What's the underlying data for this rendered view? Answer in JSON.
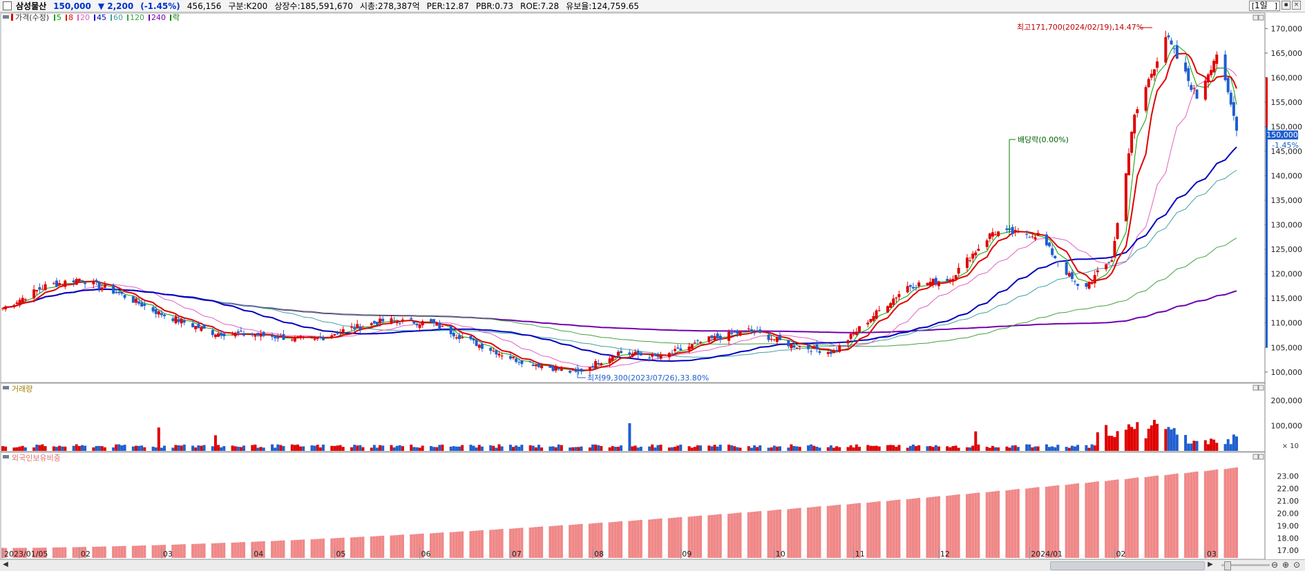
{
  "header": {
    "name": "삼성물산",
    "price": "150,000",
    "change": "▼ 2,200",
    "change_pct": "(-1.45%)",
    "volume": "456,156",
    "market": "구분:K200",
    "shares": "상장수:185,591,670",
    "mcap": "시총:278,387억",
    "per": "PER:12.87",
    "pbr": "PBR:0.73",
    "roe": "ROE:7.28",
    "float": "유보율:124,759.65",
    "period": "1일"
  },
  "legend": {
    "price_label": "가격(수정)",
    "ma": [
      {
        "label": "5",
        "color": "#00a000"
      },
      {
        "label": "8",
        "color": "#e00000"
      },
      {
        "label": "20",
        "color": "#e060c0"
      },
      {
        "label": "45",
        "color": "#0000c0"
      },
      {
        "label": "60",
        "color": "#40a0a0"
      },
      {
        "label": "120",
        "color": "#40a040"
      },
      {
        "label": "240",
        "color": "#7000b0"
      },
      {
        "label": "락",
        "color": "#008000"
      }
    ]
  },
  "panels": {
    "volume_label": "거래량",
    "foreign_label": "외국인보유비중",
    "volume_multiplier": "× 10"
  },
  "annotations": {
    "high": "최고171,700(2024/02/19),14.47%",
    "low": "최저99,300(2023/07/26),33.80%",
    "dividend": "배당락(0.00%)",
    "last_price": "150,000",
    "last_pct": "-1.45%"
  },
  "axes": {
    "price_ticks": [
      "170,000",
      "165,000",
      "160,000",
      "155,000",
      "150,000",
      "145,000",
      "140,000",
      "135,000",
      "130,000",
      "125,000",
      "120,000",
      "115,000",
      "110,000",
      "105,000",
      "100,000"
    ],
    "volume_ticks": [
      "200,000",
      "100,000"
    ],
    "foreign_ticks": [
      "23.00",
      "22.00",
      "21.00",
      "20.00",
      "19.00",
      "18.00",
      "17.00"
    ],
    "dates": [
      "2023/01/05",
      "02",
      "03",
      "04",
      "05",
      "06",
      "07",
      "08",
      "09",
      "10",
      "11",
      "12",
      "2024/01",
      "02",
      "03"
    ]
  },
  "colors": {
    "up": "#e00000",
    "down": "#1f5fd0",
    "foreign_bar": "#f08888"
  },
  "chart_data": {
    "type": "candlestick",
    "price_series": {
      "name": "가격(수정)",
      "keypoints": [
        {
          "x": "2023/01/05",
          "y": 113000
        },
        {
          "x": "2023/01/20",
          "y": 117500
        },
        {
          "x": "2023/02/01",
          "y": 119000
        },
        {
          "x": "2023/02/15",
          "y": 116000
        },
        {
          "x": "2023/03/01",
          "y": 112000
        },
        {
          "x": "2023/03/20",
          "y": 108000
        },
        {
          "x": "2023/04/05",
          "y": 107500
        },
        {
          "x": "2023/04/25",
          "y": 106500
        },
        {
          "x": "2023/05/05",
          "y": 108500
        },
        {
          "x": "2023/05/20",
          "y": 110500
        },
        {
          "x": "2023/06/05",
          "y": 110000
        },
        {
          "x": "2023/06/20",
          "y": 106000
        },
        {
          "x": "2023/07/05",
          "y": 102500
        },
        {
          "x": "2023/07/26",
          "y": 99800
        },
        {
          "x": "2023/08/10",
          "y": 104000
        },
        {
          "x": "2023/08/25",
          "y": 103000
        },
        {
          "x": "2023/09/10",
          "y": 106500
        },
        {
          "x": "2023/09/25",
          "y": 108500
        },
        {
          "x": "2023/10/10",
          "y": 105500
        },
        {
          "x": "2023/10/25",
          "y": 104000
        },
        {
          "x": "2023/11/05",
          "y": 110000
        },
        {
          "x": "2023/11/20",
          "y": 117500
        },
        {
          "x": "2023/12/05",
          "y": 119000
        },
        {
          "x": "2023/12/20",
          "y": 128500
        },
        {
          "x": "2024/01/05",
          "y": 128000
        },
        {
          "x": "2024/01/20",
          "y": 116500
        },
        {
          "x": "2024/01/31",
          "y": 123000
        },
        {
          "x": "2024/02/08",
          "y": 152000
        },
        {
          "x": "2024/02/19",
          "y": 168500
        },
        {
          "x": "2024/03/01",
          "y": 156000
        },
        {
          "x": "2024/03/08",
          "y": 165000
        },
        {
          "x": "2024/03/15",
          "y": 150000
        }
      ],
      "high": {
        "date": "2024/02/19",
        "value": 171700
      },
      "low": {
        "date": "2023/07/26",
        "value": 99300
      },
      "last": 150000
    },
    "volume_scale": "× 10",
    "foreign_holding_pct": {
      "start": 17.2,
      "end": 23.7
    },
    "ylim": [
      98000,
      173000
    ]
  }
}
